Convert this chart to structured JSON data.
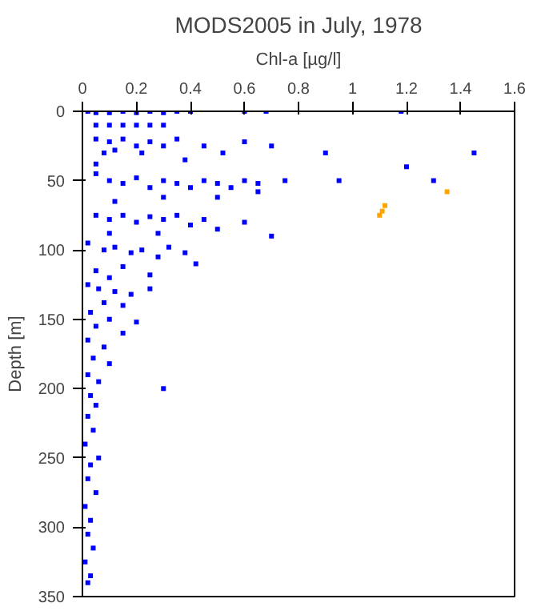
{
  "chart_data": {
    "type": "scatter",
    "title": "MODS2005 in July, 1978",
    "xlabel": "Chl-a [µg/l]",
    "ylabel": "Depth [m]",
    "xlim": [
      0,
      1.6
    ],
    "ylim": [
      350,
      0
    ],
    "xticks": [
      0,
      0.2,
      0.4,
      0.6,
      0.8,
      1,
      1.2,
      1.4,
      1.6
    ],
    "yticks": [
      0,
      50,
      100,
      150,
      200,
      250,
      300,
      350
    ],
    "grid": false,
    "marker": "square",
    "series": [
      {
        "color": "#0000ff",
        "x": [
          0.02,
          0.05,
          0.1,
          0.15,
          0.2,
          0.25,
          0.3,
          0.35,
          0.4,
          0.6,
          0.68,
          1.18,
          0.05,
          0.1,
          0.15,
          0.2,
          0.25,
          0.3,
          0.05,
          0.1,
          0.15,
          0.2,
          0.25,
          0.3,
          0.35,
          0.12,
          0.08,
          0.22,
          0.45,
          0.52,
          0.6,
          0.7,
          0.9,
          1.45,
          1.2,
          0.38,
          0.05,
          0.05,
          0.1,
          0.15,
          0.2,
          0.25,
          0.3,
          0.35,
          0.4,
          0.45,
          0.5,
          0.55,
          0.6,
          0.65,
          0.75,
          0.95,
          1.3,
          0.5,
          0.65,
          0.3,
          0.12,
          0.05,
          0.1,
          0.15,
          0.2,
          0.25,
          0.3,
          0.35,
          0.4,
          0.45,
          0.5,
          0.6,
          0.7,
          0.28,
          0.1,
          0.02,
          0.08,
          0.12,
          0.18,
          0.22,
          0.28,
          0.32,
          0.38,
          0.42,
          0.15,
          0.05,
          0.25,
          0.1,
          0.02,
          0.06,
          0.12,
          0.18,
          0.25,
          0.08,
          0.15,
          0.03,
          0.1,
          0.2,
          0.05,
          0.15,
          0.02,
          0.08,
          0.04,
          0.1,
          0.02,
          0.06,
          0.3,
          0.03,
          0.05,
          0.02,
          0.04,
          0.01,
          0.06,
          0.03,
          0.02,
          0.05,
          0.01,
          0.03,
          0.02,
          0.04,
          0.01,
          0.03,
          0.02
        ],
        "values": [
          0,
          1,
          1,
          0,
          1,
          0,
          1,
          0,
          0,
          0,
          0,
          0,
          10,
          10,
          10,
          10,
          10,
          10,
          20,
          22,
          20,
          25,
          22,
          25,
          20,
          28,
          30,
          30,
          25,
          30,
          22,
          25,
          30,
          30,
          40,
          35,
          38,
          45,
          50,
          52,
          48,
          55,
          50,
          52,
          55,
          50,
          52,
          55,
          50,
          52,
          50,
          50,
          50,
          62,
          58,
          62,
          65,
          75,
          78,
          75,
          80,
          76,
          78,
          75,
          82,
          78,
          85,
          80,
          90,
          88,
          88,
          95,
          100,
          98,
          102,
          100,
          105,
          98,
          102,
          110,
          112,
          115,
          118,
          120,
          125,
          128,
          130,
          132,
          128,
          138,
          140,
          145,
          150,
          152,
          155,
          160,
          165,
          170,
          178,
          182,
          190,
          195,
          200,
          205,
          212,
          220,
          230,
          240,
          250,
          255,
          265,
          275,
          285,
          295,
          305,
          315,
          325,
          335,
          340
        ]
      },
      {
        "color": "#ffa500",
        "x": [
          1.35,
          1.12,
          1.11,
          1.1
        ],
        "values": [
          58,
          68,
          72,
          75
        ]
      }
    ]
  }
}
